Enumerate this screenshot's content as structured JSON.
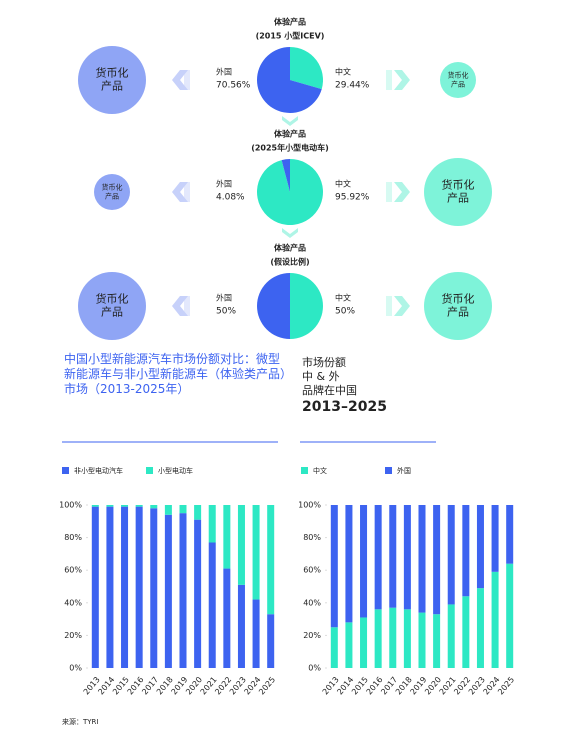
{
  "chart_data": [
    {
      "type": "pie",
      "title": "体验产品",
      "subtitle": "(2015 小型ICEV)",
      "categories": [
        "外国",
        "中文"
      ],
      "values": [
        70.56,
        29.44
      ],
      "value_labels": [
        "70.56%",
        "29.44%"
      ],
      "colors": [
        "#3d63f0",
        "#2de8c4"
      ],
      "left_label": [
        "货币化",
        "产品"
      ],
      "right_label": [
        "货币化",
        "产品"
      ]
    },
    {
      "type": "pie",
      "title": "体验产品",
      "subtitle": "(2025年小型电动车)",
      "categories": [
        "外国",
        "中文"
      ],
      "values": [
        4.08,
        95.92
      ],
      "value_labels": [
        "4.08%",
        "95.92%"
      ],
      "colors": [
        "#3d63f0",
        "#2de8c4"
      ],
      "left_label": [
        "货币化",
        "产品"
      ],
      "right_label": [
        "货币化",
        "产品"
      ]
    },
    {
      "type": "pie",
      "title": "体验产品",
      "subtitle": "(假设比例)",
      "categories": [
        "外国",
        "中文"
      ],
      "values": [
        50,
        50
      ],
      "value_labels": [
        "50%",
        "50%"
      ],
      "colors": [
        "#3d63f0",
        "#2de8c4"
      ],
      "left_label": [
        "货币化",
        "产品"
      ],
      "right_label": [
        "货币化",
        "产品"
      ]
    },
    {
      "type": "bar",
      "stacked": true,
      "categories": [
        "2013",
        "2014",
        "2015",
        "2016",
        "2017",
        "2018",
        "2019",
        "2020",
        "2021",
        "2022",
        "2023",
        "2024",
        "2025"
      ],
      "series": [
        {
          "name": "非小型电动汽车",
          "color": "#3d63f0",
          "values": [
            99,
            99,
            99,
            99,
            98,
            94,
            95,
            91,
            77,
            61,
            51,
            42,
            33
          ]
        },
        {
          "name": "小型电动车",
          "color": "#2de8c4",
          "values": [
            1,
            1,
            1,
            1,
            2,
            6,
            5,
            9,
            23,
            39,
            49,
            58,
            67
          ]
        }
      ],
      "ylim": [
        0,
        100
      ],
      "yticks": [
        {
          "value": 0,
          "label": "0%"
        },
        {
          "value": 20,
          "label": "20%"
        },
        {
          "value": 40,
          "label": "40%"
        },
        {
          "value": 60,
          "label": "60%"
        },
        {
          "value": 80,
          "label": "80%"
        },
        {
          "value": 100,
          "label": "100%"
        }
      ]
    },
    {
      "type": "bar",
      "stacked": true,
      "categories": [
        "2013",
        "2014",
        "2015",
        "2016",
        "2017",
        "2018",
        "2019",
        "2020",
        "2021",
        "2022",
        "2023",
        "2024",
        "2025"
      ],
      "series": [
        {
          "name": "中文",
          "color": "#2de8c4",
          "values": [
            25,
            28,
            31,
            36,
            37,
            36,
            34,
            33,
            39,
            44,
            49,
            59,
            64
          ]
        },
        {
          "name": "外国",
          "color": "#3d63f0",
          "values": [
            75,
            72,
            69,
            64,
            63,
            64,
            66,
            67,
            61,
            56,
            51,
            41,
            36
          ]
        }
      ],
      "ylim": [
        0,
        100
      ],
      "yticks": [
        {
          "value": 0,
          "label": "0%"
        },
        {
          "value": 20,
          "label": "20%"
        },
        {
          "value": 40,
          "label": "40%"
        },
        {
          "value": 60,
          "label": "60%"
        },
        {
          "value": 80,
          "label": "80%"
        },
        {
          "value": 100,
          "label": "100%"
        }
      ]
    }
  ],
  "left_heading": "中国小型新能源汽车市场份额对比：微型新能源车与非小型新能源车（体验类产品）市场（2013-2025年）",
  "right_heading": [
    "市场份额",
    "中 & 外",
    "品牌在中国",
    "2013–2025"
  ],
  "source": "来源：TYRI"
}
